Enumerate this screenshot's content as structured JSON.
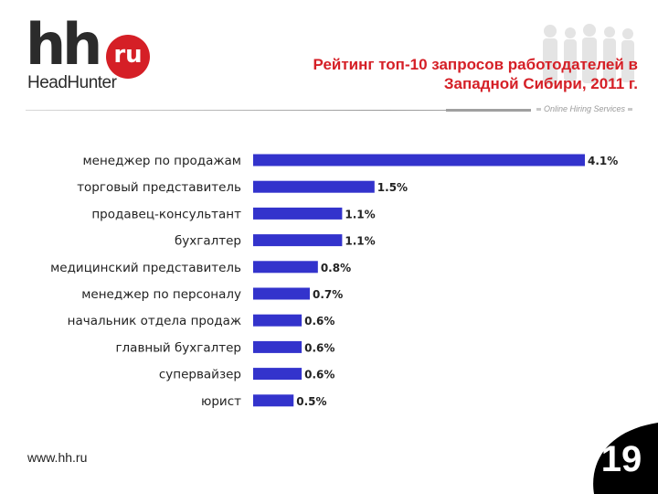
{
  "logo": {
    "brand": "hh",
    "badge": "ru",
    "name": "HeadHunter"
  },
  "header": {
    "title_line1": "Рейтинг топ-10 запросов работодателей в",
    "title_line2": "Западной Сибири, 2011 г.",
    "tagline": "Online Hiring Services"
  },
  "colors": {
    "bar": "#3333cc",
    "title": "#d51f26",
    "logo_badge": "#d51f26"
  },
  "chart_data": {
    "type": "bar",
    "orientation": "horizontal",
    "categories": [
      "менеджер по продажам",
      "торговый представитель",
      "продавец-консультант",
      "бухгалтер",
      "медицинский представитель",
      "менеджер по персоналу",
      "начальник отдела продаж",
      "главный бухгалтер",
      "супервайзер",
      "юрист"
    ],
    "values": [
      4.1,
      1.5,
      1.1,
      1.1,
      0.8,
      0.7,
      0.6,
      0.6,
      0.6,
      0.5
    ],
    "value_labels": [
      "4.1%",
      "1.5%",
      "1.1%",
      "1.1%",
      "0.8%",
      "0.7%",
      "0.6%",
      "0.6%",
      "0.6%",
      "0.5%"
    ],
    "xlim": [
      0,
      4.1
    ],
    "grid": false,
    "legend": "none"
  },
  "footer": {
    "url": "www.hh.ru",
    "page_number": "19"
  }
}
